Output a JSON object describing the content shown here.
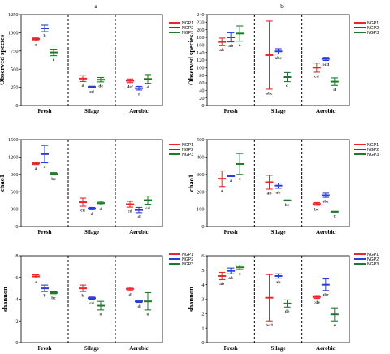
{
  "panel_labels": [
    "a",
    "b"
  ],
  "colors": {
    "NGP1": "#e8262b",
    "NGP2": "#2a3dd6",
    "NGP3": "#1e7a2a"
  },
  "chart_data": [
    {
      "type": "scatter",
      "panel": "a",
      "ylabel": "Observed species",
      "categories": [
        "Fresh",
        "Silage",
        "Aerobic"
      ],
      "ylim": [
        0,
        1250
      ],
      "yticks": [
        0,
        250,
        500,
        750,
        1000,
        1250
      ],
      "series": [
        {
          "name": "NGP1",
          "values": [
            915,
            370,
            340
          ],
          "err": [
            20,
            40,
            25
          ],
          "labels": [
            "a",
            "d",
            "def"
          ]
        },
        {
          "name": "NGP2",
          "values": [
            1060,
            255,
            238
          ],
          "err": [
            45,
            10,
            25
          ],
          "labels": [
            "b",
            "ed",
            "f"
          ]
        },
        {
          "name": "NGP3",
          "values": [
            730,
            355,
            365
          ],
          "err": [
            45,
            30,
            60
          ],
          "labels": [
            "c",
            "de",
            "d"
          ]
        }
      ]
    },
    {
      "type": "scatter",
      "panel": "b",
      "ylabel": "Observed species",
      "categories": [
        "Fresh",
        "Silage",
        "Aerobic"
      ],
      "ylim": [
        0,
        240
      ],
      "yticks": [
        0,
        20,
        40,
        60,
        80,
        100,
        120,
        140,
        160,
        180,
        200,
        220,
        240
      ],
      "series": [
        {
          "name": "NGP1",
          "values": [
            168,
            133,
            100
          ],
          "err": [
            10,
            90,
            12
          ],
          "labels": [
            "ab",
            "abc",
            "cd"
          ]
        },
        {
          "name": "NGP2",
          "values": [
            180,
            143,
            123
          ],
          "err": [
            12,
            7,
            4
          ],
          "labels": [
            "ab",
            "abc",
            "bcd"
          ]
        },
        {
          "name": "NGP3",
          "values": [
            190,
            75,
            63
          ],
          "err": [
            20,
            12,
            10
          ],
          "labels": [
            "a",
            "d",
            "d"
          ]
        }
      ]
    },
    {
      "type": "scatter",
      "panel": "a",
      "ylabel": "chao1",
      "categories": [
        "Fresh",
        "Silage",
        "Aerobic"
      ],
      "ylim": [
        0,
        1500
      ],
      "yticks": [
        0,
        300,
        600,
        900,
        1200,
        1500
      ],
      "series": [
        {
          "name": "NGP1",
          "values": [
            1090,
            420,
            385
          ],
          "err": [
            20,
            70,
            50
          ],
          "labels": [
            "a",
            "cd",
            "cd"
          ]
        },
        {
          "name": "NGP2",
          "values": [
            1250,
            310,
            285
          ],
          "err": [
            150,
            20,
            45
          ],
          "labels": [
            "a",
            "d",
            "d"
          ]
        },
        {
          "name": "NGP3",
          "values": [
            910,
            405,
            455
          ],
          "err": [
            20,
            30,
            70
          ],
          "labels": [
            "bc",
            "d",
            "cd"
          ]
        }
      ]
    },
    {
      "type": "scatter",
      "panel": "b",
      "ylabel": "chao1",
      "categories": [
        "Fresh",
        "Silage",
        "Aerobic"
      ],
      "ylim": [
        0,
        500
      ],
      "yticks": [
        0,
        100,
        200,
        300,
        400,
        500
      ],
      "series": [
        {
          "name": "NGP1",
          "values": [
            275,
            255,
            130
          ],
          "err": [
            45,
            40,
            8
          ],
          "labels": [
            "a",
            "ab",
            "bc"
          ]
        },
        {
          "name": "NGP2",
          "values": [
            290,
            235,
            180
          ],
          "err": [
            2,
            15,
            12
          ],
          "labels": [
            "a",
            "ab",
            "abc"
          ]
        },
        {
          "name": "NGP3",
          "values": [
            360,
            150,
            85
          ],
          "err": [
            60,
            3,
            2
          ],
          "labels": [
            "a",
            "bc",
            "c"
          ]
        }
      ]
    },
    {
      "type": "scatter",
      "panel": "a",
      "ylabel": "shannon",
      "categories": [
        "Fresh",
        "Silage",
        "Aerobic"
      ],
      "ylim": [
        0,
        8
      ],
      "yticks": [
        0,
        2,
        4,
        6,
        8
      ],
      "series": [
        {
          "name": "NGP1",
          "values": [
            6.1,
            5.0,
            4.95
          ],
          "err": [
            0.15,
            0.3,
            0.15
          ],
          "labels": [
            "a",
            "b",
            "d"
          ]
        },
        {
          "name": "NGP2",
          "values": [
            5.0,
            4.1,
            3.8
          ],
          "err": [
            0.3,
            0.1,
            0.1
          ],
          "labels": [
            "b",
            "cd",
            "d"
          ]
        },
        {
          "name": "NGP3",
          "values": [
            4.6,
            3.4,
            3.8
          ],
          "err": [
            0.1,
            0.4,
            0.8
          ],
          "labels": [
            "bc",
            "d",
            "d"
          ]
        }
      ]
    },
    {
      "type": "scatter",
      "panel": "b",
      "ylabel": "shannon",
      "categories": [
        "Fresh",
        "Silage",
        "Aerobic"
      ],
      "ylim": [
        0,
        6
      ],
      "yticks": [
        0,
        1,
        2,
        3,
        4,
        5,
        6
      ],
      "series": [
        {
          "name": "NGP1",
          "values": [
            4.6,
            3.1,
            3.15
          ],
          "err": [
            0.25,
            1.6,
            0.1
          ],
          "labels": [
            "ab",
            "bcd",
            "cde"
          ]
        },
        {
          "name": "NGP2",
          "values": [
            4.95,
            4.6,
            4.0
          ],
          "err": [
            0.2,
            0.15,
            0.4
          ],
          "labels": [
            "ab",
            "ab",
            "abc"
          ]
        },
        {
          "name": "NGP3",
          "values": [
            5.2,
            2.7,
            1.95
          ],
          "err": [
            0.15,
            0.25,
            0.45
          ],
          "labels": [
            "a",
            "de",
            "e"
          ]
        }
      ]
    }
  ]
}
